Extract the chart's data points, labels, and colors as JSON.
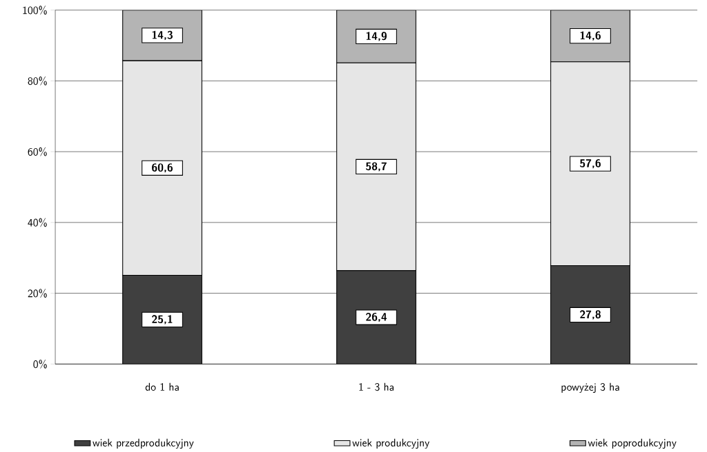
{
  "chart_data": {
    "type": "bar",
    "stacked": true,
    "categories": [
      "do 1 ha",
      "1 - 3 ha",
      "powyżej 3 ha"
    ],
    "series": [
      {
        "name": "wiek przedprodukcyjny",
        "color": "#404040",
        "values": [
          25.1,
          26.4,
          27.8
        ],
        "value_labels": [
          "25,1",
          "26,4",
          "27,8"
        ]
      },
      {
        "name": "wiek produkcyjny",
        "color": "#e6e6e6",
        "values": [
          60.6,
          58.7,
          57.6
        ],
        "value_labels": [
          "60,6",
          "58,7",
          "57,6"
        ]
      },
      {
        "name": "wiek poprodukcyjny",
        "color": "#b4b4b4",
        "values": [
          14.3,
          14.9,
          14.6
        ],
        "value_labels": [
          "14,3",
          "14,9",
          "14,6"
        ]
      }
    ],
    "ylim": [
      0,
      100
    ],
    "yticks": [
      {
        "value": 0,
        "label": "0%"
      },
      {
        "value": 20,
        "label": "20%"
      },
      {
        "value": 40,
        "label": "40%"
      },
      {
        "value": 60,
        "label": "60%"
      },
      {
        "value": 80,
        "label": "80%"
      },
      {
        "value": 100,
        "label": "100%"
      }
    ],
    "grid": "y",
    "legend": "bottom"
  }
}
